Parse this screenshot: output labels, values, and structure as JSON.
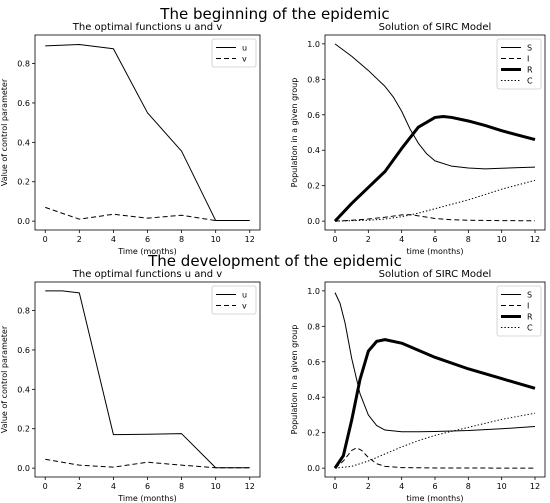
{
  "sections": [
    {
      "title": "The beginning of the epidemic"
    },
    {
      "title": "The development of the epidemic"
    }
  ],
  "chart_data": [
    {
      "type": "line",
      "title": "The optimal functions u and v",
      "xlabel": "Time (months)",
      "ylabel": "Value of control parameter",
      "xlim": [
        0,
        12
      ],
      "ylim": [
        0,
        0.9
      ],
      "xticks": [
        0,
        2,
        4,
        6,
        8,
        10,
        12
      ],
      "yticks": [
        0.0,
        0.2,
        0.4,
        0.6,
        0.8
      ],
      "legend": "top-right",
      "series": [
        {
          "name": "u",
          "style": "solid",
          "width": 1,
          "x": [
            0,
            2,
            4,
            6,
            8,
            10,
            12
          ],
          "y": [
            0.89,
            0.897,
            0.875,
            0.55,
            0.355,
            0.003,
            0.003
          ]
        },
        {
          "name": "v",
          "style": "dashed",
          "width": 1,
          "x": [
            0,
            2,
            4,
            6,
            8,
            10,
            12
          ],
          "y": [
            0.07,
            0.01,
            0.035,
            0.015,
            0.03,
            0.003,
            0.003
          ]
        }
      ]
    },
    {
      "type": "line",
      "title": "Solution of SIRC Model",
      "xlabel": "time (months)",
      "ylabel": "Population in a given group",
      "xlim": [
        0,
        12
      ],
      "ylim": [
        0,
        1.0
      ],
      "xticks": [
        0,
        2,
        4,
        6,
        8,
        10,
        12
      ],
      "yticks": [
        0.0,
        0.2,
        0.4,
        0.6,
        0.8,
        1.0
      ],
      "legend": "top-right",
      "series": [
        {
          "name": "S",
          "style": "solid",
          "width": 1,
          "x": [
            0,
            1,
            2,
            3,
            3.5,
            4,
            4.5,
            5,
            5.5,
            6,
            7,
            8,
            9,
            10,
            11,
            12
          ],
          "y": [
            1.0,
            0.93,
            0.85,
            0.76,
            0.7,
            0.62,
            0.52,
            0.44,
            0.38,
            0.34,
            0.31,
            0.3,
            0.295,
            0.298,
            0.302,
            0.305
          ]
        },
        {
          "name": "I",
          "style": "dashed",
          "width": 1,
          "x": [
            0,
            1,
            2,
            3,
            4,
            4.5,
            5,
            6,
            7,
            8,
            10,
            12
          ],
          "y": [
            0.0,
            0.005,
            0.012,
            0.022,
            0.035,
            0.037,
            0.03,
            0.015,
            0.008,
            0.005,
            0.003,
            0.002
          ]
        },
        {
          "name": "R",
          "style": "solid",
          "width": 3,
          "x": [
            0,
            1,
            2,
            3,
            4,
            5,
            6,
            6.5,
            7,
            8,
            9,
            10,
            11,
            12
          ],
          "y": [
            0.0,
            0.1,
            0.19,
            0.28,
            0.41,
            0.53,
            0.585,
            0.59,
            0.585,
            0.565,
            0.54,
            0.51,
            0.485,
            0.46
          ]
        },
        {
          "name": "C",
          "style": "dotted",
          "width": 1,
          "x": [
            0,
            2,
            3,
            4,
            5,
            6,
            8,
            10,
            12
          ],
          "y": [
            0.0,
            0.005,
            0.012,
            0.025,
            0.045,
            0.07,
            0.12,
            0.18,
            0.23
          ]
        }
      ]
    },
    {
      "type": "line",
      "title": "The optimal functions u and v",
      "xlabel": "Time (months)",
      "ylabel": "Value of control parameter",
      "xlim": [
        0,
        12
      ],
      "ylim": [
        0,
        0.9
      ],
      "xticks": [
        0,
        2,
        4,
        6,
        8,
        10,
        12
      ],
      "yticks": [
        0.0,
        0.2,
        0.4,
        0.6,
        0.8
      ],
      "legend": "top-right",
      "series": [
        {
          "name": "u",
          "style": "solid",
          "width": 1,
          "x": [
            0,
            1,
            2,
            4,
            6,
            8,
            10,
            12
          ],
          "y": [
            0.9,
            0.9,
            0.89,
            0.17,
            0.172,
            0.175,
            0.002,
            0.002
          ]
        },
        {
          "name": "v",
          "style": "dashed",
          "width": 1,
          "x": [
            0,
            2,
            4,
            6,
            8,
            10,
            12
          ],
          "y": [
            0.045,
            0.015,
            0.005,
            0.03,
            0.015,
            0.002,
            0.002
          ]
        }
      ]
    },
    {
      "type": "line",
      "title": "Solution of SIRC Model",
      "xlabel": "time (months)",
      "ylabel": "Population in a given group",
      "xlim": [
        0,
        12
      ],
      "ylim": [
        0,
        1.0
      ],
      "xticks": [
        0,
        2,
        4,
        6,
        8,
        10,
        12
      ],
      "yticks": [
        0.0,
        0.2,
        0.4,
        0.6,
        0.8,
        1.0
      ],
      "legend": "top-right",
      "series": [
        {
          "name": "S",
          "style": "solid",
          "width": 1,
          "x": [
            0,
            0.3,
            0.6,
            1,
            1.5,
            2,
            2.5,
            3,
            4,
            5,
            6,
            8,
            10,
            12
          ],
          "y": [
            0.99,
            0.93,
            0.82,
            0.62,
            0.42,
            0.3,
            0.24,
            0.215,
            0.205,
            0.205,
            0.207,
            0.212,
            0.222,
            0.235
          ]
        },
        {
          "name": "I",
          "style": "dashed",
          "width": 1,
          "x": [
            0,
            0.5,
            1,
            1.3,
            1.6,
            2,
            2.5,
            3,
            4,
            6,
            12
          ],
          "y": [
            0.0,
            0.04,
            0.1,
            0.115,
            0.1,
            0.06,
            0.025,
            0.01,
            0.003,
            0.001,
            0.0
          ]
        },
        {
          "name": "R",
          "style": "solid",
          "width": 3,
          "x": [
            0,
            0.5,
            1,
            1.5,
            2,
            2.5,
            3,
            4,
            5,
            6,
            8,
            10,
            12
          ],
          "y": [
            0.0,
            0.07,
            0.27,
            0.5,
            0.66,
            0.715,
            0.725,
            0.705,
            0.665,
            0.625,
            0.56,
            0.505,
            0.45
          ]
        },
        {
          "name": "C",
          "style": "dotted",
          "width": 1,
          "x": [
            0,
            1,
            2,
            3,
            4,
            5,
            6,
            8,
            10,
            12
          ],
          "y": [
            0.0,
            0.01,
            0.04,
            0.08,
            0.12,
            0.155,
            0.185,
            0.23,
            0.275,
            0.31
          ]
        }
      ]
    }
  ]
}
